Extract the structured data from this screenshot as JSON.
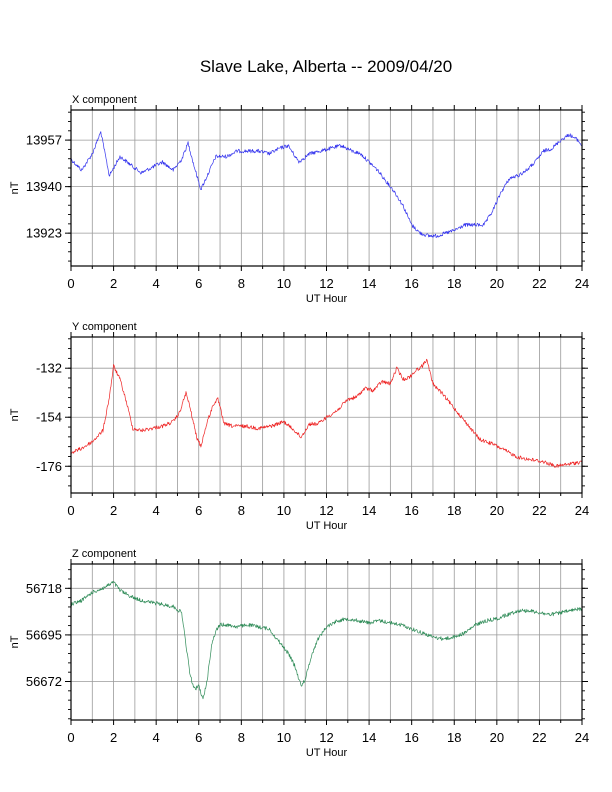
{
  "title": "Slave Lake, Alberta -- 2009/04/20",
  "chart_data": [
    {
      "type": "line",
      "title": "X component",
      "xlabel": "UT Hour",
      "ylabel": "nT",
      "xlim": [
        0,
        24
      ],
      "ylim": [
        13911,
        13968
      ],
      "xticks": [
        0,
        2,
        4,
        6,
        8,
        10,
        12,
        14,
        16,
        18,
        20,
        22,
        24
      ],
      "yticks": [
        13923,
        13940,
        13957
      ],
      "grid": true,
      "color": "#3333ee",
      "series": [
        {
          "x": [
            0,
            0.5,
            1.0,
            1.4,
            1.8,
            2.3,
            2.8,
            3.3,
            3.8,
            4.3,
            4.8,
            5.2,
            5.5,
            5.8,
            6.1,
            6.4,
            6.8,
            7.3,
            7.8,
            8.3,
            8.8,
            9.3,
            9.8,
            10.2,
            10.7,
            11.2,
            11.7,
            12.2,
            12.7,
            13.2,
            13.6,
            14.0,
            14.4,
            14.8,
            15.2,
            15.6,
            16.0,
            16.4,
            16.8,
            17.2,
            17.6,
            18.0,
            18.5,
            19.0,
            19.4,
            19.8,
            20.2,
            20.6,
            21.0,
            21.4,
            21.8,
            22.2,
            22.6,
            23.0,
            23.4,
            23.8,
            24.0
          ],
          "y": [
            13950,
            13946,
            13952,
            13960,
            13944,
            13951,
            13948,
            13945,
            13947,
            13949,
            13946,
            13950,
            13956,
            13947,
            13939,
            13944,
            13951,
            13951,
            13953,
            13953,
            13953,
            13952,
            13954,
            13955,
            13949,
            13952,
            13953,
            13954,
            13955,
            13953,
            13952,
            13949,
            13946,
            13942,
            13938,
            13933,
            13926,
            13923,
            13922,
            13922,
            13923,
            13924,
            13926,
            13926,
            13926,
            13931,
            13938,
            13943,
            13944,
            13946,
            13949,
            13953,
            13954,
            13957,
            13959,
            13957,
            13955
          ]
        }
      ]
    },
    {
      "type": "line",
      "title": "Y component",
      "xlabel": "UT Hour",
      "ylabel": "nT",
      "xlim": [
        0,
        24
      ],
      "ylim": [
        -188,
        -118
      ],
      "xticks": [
        0,
        2,
        4,
        6,
        8,
        10,
        12,
        14,
        16,
        18,
        20,
        22,
        24
      ],
      "yticks": [
        -132,
        -154,
        -176
      ],
      "grid": true,
      "color": "#ee2222",
      "series": [
        {
          "x": [
            0,
            0.5,
            1.0,
            1.5,
            1.8,
            2.0,
            2.3,
            2.6,
            2.9,
            3.3,
            3.8,
            4.3,
            4.8,
            5.1,
            5.4,
            5.6,
            5.9,
            6.1,
            6.4,
            6.7,
            6.9,
            7.2,
            7.6,
            8.2,
            8.8,
            9.4,
            10.0,
            10.5,
            10.8,
            11.2,
            11.6,
            12.0,
            12.5,
            13.0,
            13.4,
            13.8,
            14.2,
            14.6,
            15.0,
            15.3,
            15.6,
            15.9,
            16.2,
            16.5,
            16.7,
            17.0,
            17.4,
            18.0,
            18.6,
            19.2,
            19.8,
            20.4,
            21.0,
            21.6,
            22.2,
            22.8,
            23.4,
            24.0
          ],
          "y": [
            -170,
            -168,
            -165,
            -160,
            -145,
            -131,
            -137,
            -147,
            -159,
            -160,
            -159,
            -158,
            -156,
            -152,
            -143,
            -150,
            -163,
            -167,
            -156,
            -148,
            -146,
            -157,
            -158,
            -158,
            -159,
            -158,
            -156,
            -160,
            -163,
            -157,
            -157,
            -154,
            -151,
            -146,
            -145,
            -141,
            -142,
            -138,
            -139,
            -132,
            -137,
            -136,
            -133,
            -131,
            -128,
            -139,
            -143,
            -150,
            -157,
            -164,
            -166,
            -169,
            -172,
            -173,
            -174,
            -176,
            -175,
            -174
          ]
        }
      ]
    },
    {
      "type": "line",
      "title": "Z component",
      "xlabel": "UT Hour",
      "ylabel": "nT",
      "xlim": [
        0,
        24
      ],
      "ylim": [
        56653,
        56730
      ],
      "xticks": [
        0,
        2,
        4,
        6,
        8,
        10,
        12,
        14,
        16,
        18,
        20,
        22,
        24
      ],
      "yticks": [
        56672,
        56695,
        56718
      ],
      "grid": true,
      "color": "#2e8b57",
      "series": [
        {
          "x": [
            0,
            0.5,
            1.0,
            1.5,
            2.0,
            2.3,
            2.8,
            3.3,
            3.8,
            4.3,
            4.8,
            5.2,
            5.4,
            5.6,
            5.8,
            6.0,
            6.2,
            6.4,
            6.6,
            6.8,
            7.0,
            7.3,
            7.8,
            8.3,
            8.8,
            9.3,
            9.6,
            9.9,
            10.2,
            10.5,
            10.8,
            11.0,
            11.3,
            11.6,
            12.0,
            12.5,
            13.0,
            13.5,
            14.0,
            14.5,
            15.0,
            15.5,
            16.0,
            16.5,
            17.0,
            17.5,
            18.0,
            18.5,
            19.0,
            19.5,
            20.0,
            20.5,
            21.0,
            21.5,
            22.0,
            22.5,
            23.0,
            23.5,
            24.0
          ],
          "y": [
            56710,
            56712,
            56716,
            56718,
            56721,
            56717,
            56714,
            56712,
            56711,
            56710,
            56709,
            56706,
            56690,
            56675,
            56668,
            56670,
            56663,
            56673,
            56690,
            56697,
            56700,
            56700,
            56699,
            56700,
            56699,
            56698,
            56694,
            56690,
            56686,
            56680,
            56670,
            56673,
            56685,
            56693,
            56699,
            56702,
            56703,
            56702,
            56701,
            56702,
            56701,
            56700,
            56698,
            56696,
            56694,
            56693,
            56694,
            56696,
            56700,
            56702,
            56703,
            56705,
            56707,
            56707,
            56706,
            56705,
            56706,
            56707,
            56708
          ]
        }
      ]
    }
  ]
}
